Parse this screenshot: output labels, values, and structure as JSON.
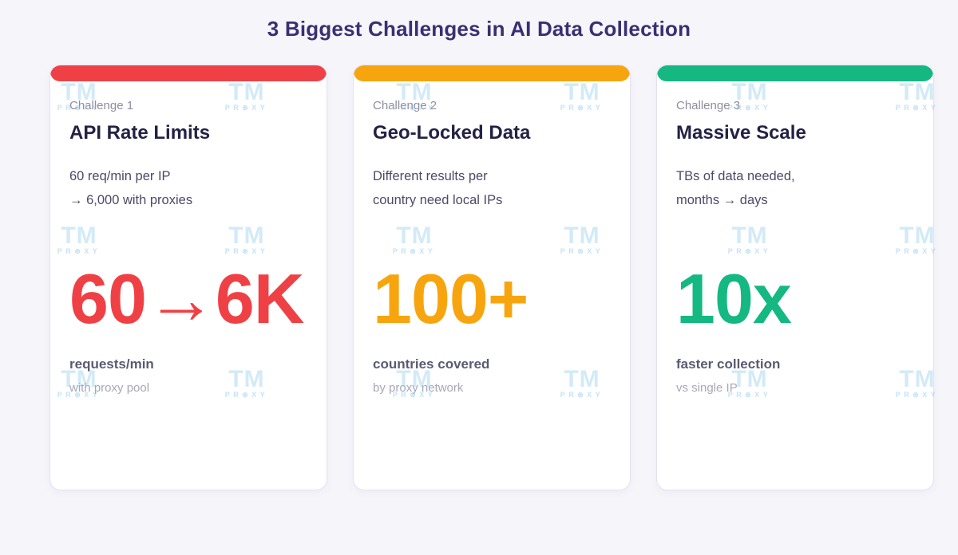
{
  "page": {
    "title": "3 Biggest Challenges in AI Data Collection"
  },
  "watermark": {
    "logo": "TM",
    "subtext": "PR⊛XY",
    "rows": [
      82,
      262,
      442
    ],
    "cols": [
      67,
      277,
      487,
      697,
      907,
      1117
    ]
  },
  "cards": [
    {
      "label": "Challenge 1",
      "title": "API Rate Limits",
      "desc_line1": "60 req/min per IP",
      "desc_line2": "→ 6,000 with proxies",
      "stat": "60→6K",
      "stat_label": "requests/min",
      "stat_sub": "with proxy pool",
      "accent": "#ef4145"
    },
    {
      "label": "Challenge 2",
      "title": "Geo-Locked Data",
      "desc_line1": "Different results per",
      "desc_line2": "country need local IPs",
      "stat": "100+",
      "stat_label": "countries covered",
      "stat_sub": "by proxy network",
      "accent": "#f7a50f"
    },
    {
      "label": "Challenge 3",
      "title": "Massive Scale",
      "desc_line1": "TBs of data needed,",
      "desc_line2": "months → days",
      "stat": "10x",
      "stat_label": "faster collection",
      "stat_sub": "vs single IP",
      "accent": "#14b880"
    }
  ]
}
